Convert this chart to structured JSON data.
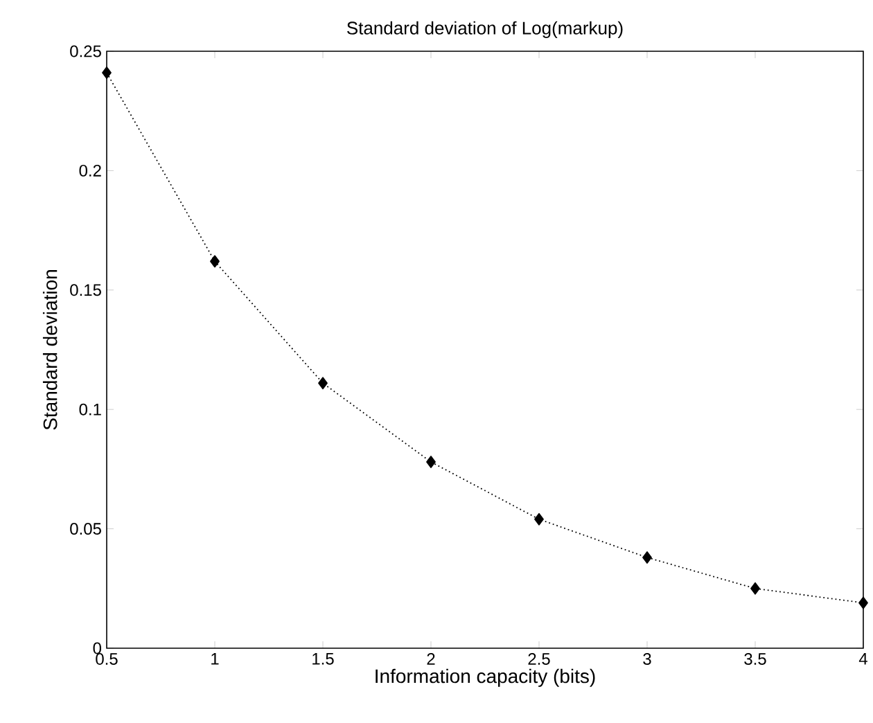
{
  "chart_data": {
    "type": "line",
    "title": "Standard deviation of Log(markup)",
    "xlabel": "Information capacity (bits)",
    "ylabel": "Standard deviation",
    "x": [
      0.5,
      1,
      1.5,
      2,
      2.5,
      3,
      3.5,
      4
    ],
    "series": [
      {
        "color": "#000000",
        "values": [
          0.241,
          0.162,
          0.111,
          0.078,
          0.054,
          0.038,
          0.025,
          0.019
        ]
      }
    ],
    "xlim": [
      0.5,
      4
    ],
    "ylim": [
      0,
      0.25
    ],
    "xticks": [
      0.5,
      1,
      1.5,
      2,
      2.5,
      3,
      3.5,
      4
    ],
    "yticks": [
      0,
      0.05,
      0.1,
      0.15,
      0.2,
      0.25
    ],
    "grid": false,
    "marker": "diamond",
    "line_style": "dotted"
  }
}
